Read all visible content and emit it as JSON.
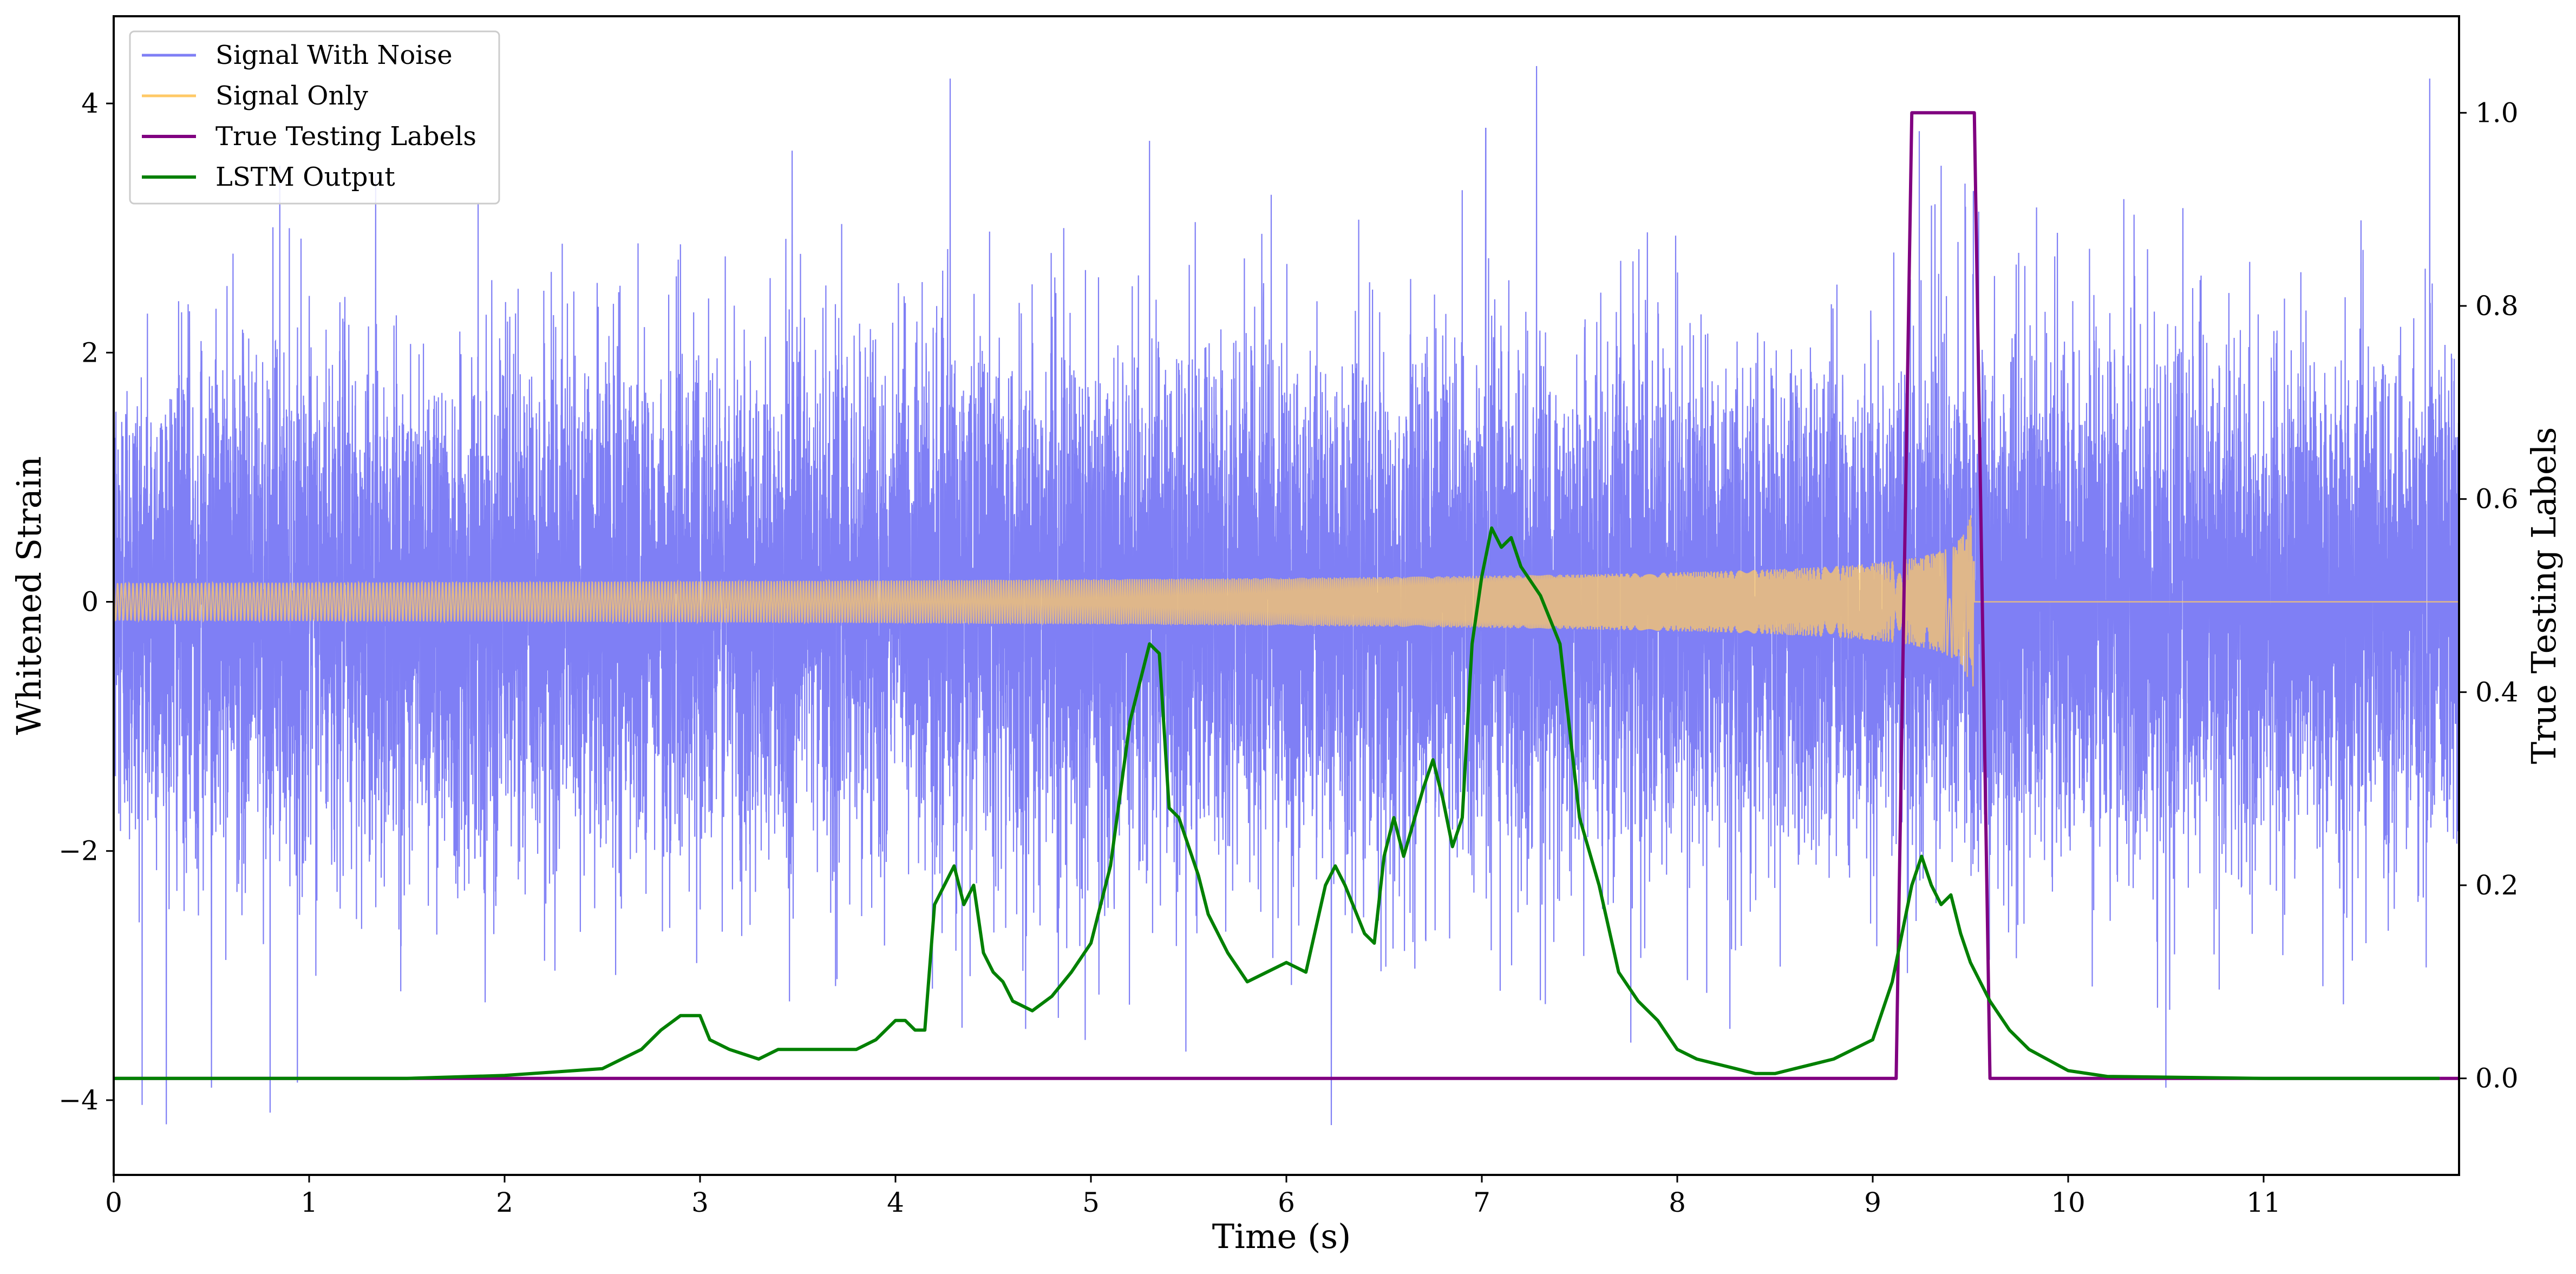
{
  "chart_data": {
    "type": "line",
    "title": "",
    "xlabel": "Time (s)",
    "ylabel": "Whitened Strain",
    "y2label": "True Testing Labels",
    "xlim": [
      0,
      12
    ],
    "ylim": [
      -4.6,
      4.7
    ],
    "y2lim": [
      -0.1,
      1.1
    ],
    "xticks": [
      "0",
      "1",
      "2",
      "3",
      "4",
      "5",
      "6",
      "7",
      "8",
      "9",
      "10",
      "11"
    ],
    "yticks": [
      "−4",
      "−2",
      "0",
      "2",
      "4"
    ],
    "y2ticks": [
      "0.0",
      "0.2",
      "0.4",
      "0.6",
      "0.8",
      "1.0"
    ],
    "legend_position": "upper-left",
    "grid": false,
    "series": [
      {
        "name": "Signal With Noise",
        "axis": "left",
        "color": "#7f7ff5",
        "style": "dense noisy trace with standard deviation near 1 and peaks up to about 4.2 and down to about -4.2",
        "sigma": 1.0,
        "peaks": [
          {
            "x": 0.5,
            "y": -3.9
          },
          {
            "x": 0.8,
            "y": -4.1
          },
          {
            "x": 0.85,
            "y": 3.5
          },
          {
            "x": 4.28,
            "y": 4.2
          },
          {
            "x": 5.3,
            "y": 3.7
          },
          {
            "x": 6.23,
            "y": -4.2
          },
          {
            "x": 7.02,
            "y": 3.8
          },
          {
            "x": 7.28,
            "y": 4.3
          },
          {
            "x": 9.35,
            "y": 3.5
          },
          {
            "x": 10.5,
            "y": -3.9
          },
          {
            "x": 11.85,
            "y": 4.2
          }
        ]
      },
      {
        "name": "Signal Only",
        "axis": "left",
        "color": "#ffc966",
        "style": "chirp whose amplitude grows from about 0.03 to about 0.7 at merger near 9.5 s, then flat at 0",
        "merger_time": 9.52,
        "end_amplitude": 0.7
      },
      {
        "name": "True Testing Labels",
        "axis": "right",
        "color": "#800080",
        "x": [
          0,
          9.12,
          9.2,
          9.52,
          9.6,
          12
        ],
        "y": [
          0,
          0,
          1,
          1,
          0,
          0
        ]
      },
      {
        "name": "LSTM Output",
        "axis": "right",
        "color": "#008000",
        "x": [
          0,
          1.5,
          2.0,
          2.5,
          2.7,
          2.8,
          2.9,
          3.0,
          3.05,
          3.15,
          3.3,
          3.4,
          3.5,
          3.6,
          3.7,
          3.8,
          3.9,
          4.0,
          4.05,
          4.1,
          4.15,
          4.2,
          4.25,
          4.3,
          4.35,
          4.4,
          4.45,
          4.5,
          4.55,
          4.6,
          4.7,
          4.8,
          4.9,
          5.0,
          5.1,
          5.2,
          5.3,
          5.35,
          5.4,
          5.45,
          5.5,
          5.55,
          5.6,
          5.7,
          5.8,
          5.9,
          6.0,
          6.1,
          6.2,
          6.25,
          6.3,
          6.4,
          6.45,
          6.5,
          6.55,
          6.6,
          6.7,
          6.75,
          6.8,
          6.85,
          6.9,
          6.95,
          7.0,
          7.05,
          7.1,
          7.15,
          7.2,
          7.3,
          7.4,
          7.5,
          7.6,
          7.7,
          7.8,
          7.9,
          8.0,
          8.1,
          8.2,
          8.3,
          8.4,
          8.5,
          8.6,
          8.7,
          8.8,
          8.9,
          9.0,
          9.1,
          9.2,
          9.25,
          9.3,
          9.35,
          9.4,
          9.45,
          9.5,
          9.6,
          9.7,
          9.8,
          10.0,
          10.2,
          11.0,
          11.9
        ],
        "y": [
          0,
          0,
          0.003,
          0.01,
          0.03,
          0.05,
          0.065,
          0.065,
          0.04,
          0.03,
          0.02,
          0.03,
          0.03,
          0.03,
          0.03,
          0.03,
          0.04,
          0.06,
          0.06,
          0.05,
          0.05,
          0.18,
          0.2,
          0.22,
          0.18,
          0.2,
          0.13,
          0.11,
          0.1,
          0.08,
          0.07,
          0.085,
          0.11,
          0.14,
          0.22,
          0.37,
          0.45,
          0.44,
          0.28,
          0.27,
          0.24,
          0.21,
          0.17,
          0.13,
          0.1,
          0.11,
          0.12,
          0.11,
          0.2,
          0.22,
          0.2,
          0.15,
          0.14,
          0.23,
          0.27,
          0.23,
          0.3,
          0.33,
          0.29,
          0.24,
          0.27,
          0.45,
          0.52,
          0.57,
          0.55,
          0.56,
          0.53,
          0.5,
          0.45,
          0.27,
          0.2,
          0.11,
          0.08,
          0.06,
          0.03,
          0.02,
          0.015,
          0.01,
          0.005,
          0.005,
          0.01,
          0.015,
          0.02,
          0.03,
          0.04,
          0.1,
          0.2,
          0.23,
          0.2,
          0.18,
          0.19,
          0.15,
          0.12,
          0.08,
          0.05,
          0.03,
          0.008,
          0.002,
          0,
          0
        ]
      }
    ]
  }
}
